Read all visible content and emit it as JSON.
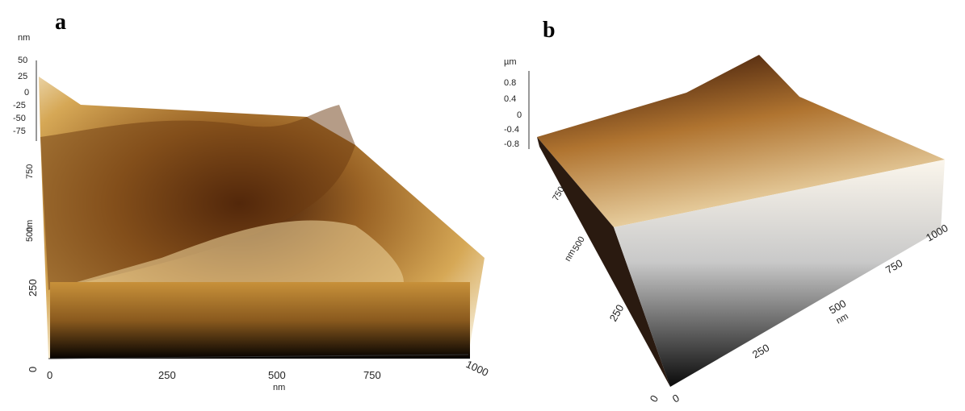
{
  "panel_a": {
    "label": "a",
    "z_unit": "nm",
    "z_ticks": [
      "50",
      "25",
      "0",
      "-25",
      "-50",
      "-75"
    ],
    "y_ticks": [
      "750",
      "500",
      "250",
      "0"
    ],
    "y_unit": "nm",
    "x_ticks": [
      "0",
      "250",
      "500",
      "750",
      "1000"
    ],
    "x_unit": "nm"
  },
  "panel_b": {
    "label": "b",
    "z_unit": "µm",
    "z_ticks": [
      "0.8",
      "0.4",
      "0",
      "-0.4",
      "-0.8"
    ],
    "y_ticks": [
      "750",
      "500",
      "250",
      "0"
    ],
    "y_unit": "nm",
    "x_ticks": [
      "0",
      "250",
      "500",
      "750",
      "1000"
    ],
    "x_unit": "nm"
  }
}
